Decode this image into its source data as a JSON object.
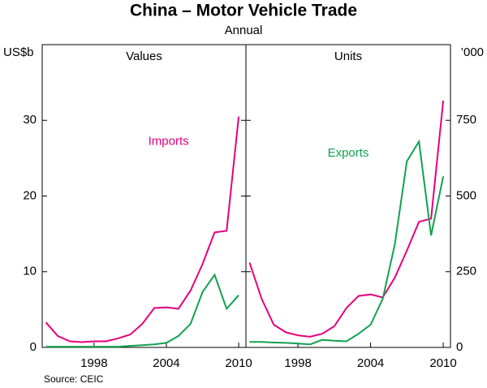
{
  "title": "China – Motor Vehicle Trade",
  "subtitle": "Annual",
  "source": "Source: CEIC",
  "chart_data": [
    {
      "type": "line",
      "panel_title": "Values",
      "y_label": "US$b",
      "x": [
        1994,
        1995,
        1996,
        1997,
        1998,
        1999,
        2000,
        2001,
        2002,
        2003,
        2004,
        2005,
        2006,
        2007,
        2008,
        2009,
        2010
      ],
      "xlim": [
        1993.7,
        2010.6
      ],
      "xticks": [
        1998,
        2004,
        2010
      ],
      "ylim": [
        0,
        40
      ],
      "yticks": [
        0,
        10,
        20,
        30
      ],
      "series": [
        {
          "name": "Imports",
          "color": "#e5007d",
          "values": [
            3.3,
            1.5,
            0.8,
            0.7,
            0.8,
            0.8,
            1.2,
            1.7,
            3.1,
            5.2,
            5.3,
            5.1,
            7.5,
            11,
            15.2,
            15.4,
            30.5
          ]
        },
        {
          "color": "#12a150",
          "values": [
            0.1,
            0.1,
            0.1,
            0.1,
            0.1,
            0.1,
            0.1,
            0.2,
            0.3,
            0.4,
            0.6,
            1.5,
            3.1,
            7.3,
            9.6,
            5.1,
            6.9
          ]
        }
      ]
    },
    {
      "type": "line",
      "panel_title": "Units",
      "y_label": "’000",
      "x": [
        1994,
        1995,
        1996,
        1997,
        1998,
        1999,
        2000,
        2001,
        2002,
        2003,
        2004,
        2005,
        2006,
        2007,
        2008,
        2009,
        2010
      ],
      "xlim": [
        1993.7,
        2010.6
      ],
      "xticks": [
        1998,
        2004,
        2010
      ],
      "ylim": [
        0,
        1000
      ],
      "yticks": [
        0,
        250,
        500,
        750
      ],
      "series": [
        {
          "color": "#e5007d",
          "values": [
            280,
            160,
            75,
            50,
            40,
            35,
            45,
            70,
            130,
            170,
            175,
            165,
            230,
            320,
            415,
            425,
            815
          ]
        },
        {
          "name": "Exports",
          "color": "#12a150",
          "values": [
            18,
            18,
            16,
            15,
            13,
            10,
            25,
            22,
            20,
            45,
            75,
            160,
            340,
            615,
            680,
            370,
            565
          ]
        }
      ]
    }
  ]
}
